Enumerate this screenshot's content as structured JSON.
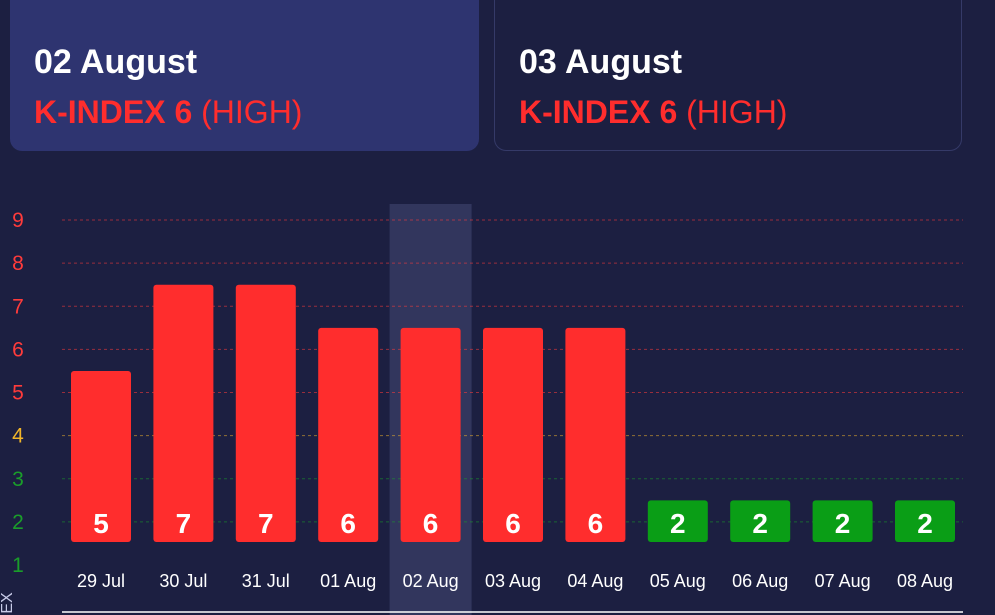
{
  "cards": [
    {
      "date": "02 August",
      "k_label": "K-INDEX 6",
      "level": "(HIGH)"
    },
    {
      "date": "03 August",
      "k_label": "K-INDEX 6",
      "level": "(HIGH)"
    }
  ],
  "colors": {
    "background": "#1c1f41",
    "card_active": "#2e3470",
    "high": "#ff2d2d",
    "moderate": "#f0b429",
    "low": "#1a9e2a",
    "highlight": "#353861"
  },
  "chart_data": {
    "type": "bar",
    "categories": [
      "29 Jul",
      "30 Jul",
      "31 Jul",
      "01 Aug",
      "02 Aug",
      "03 Aug",
      "04 Aug",
      "05 Aug",
      "06 Aug",
      "07 Aug",
      "08 Aug"
    ],
    "values": [
      5,
      7,
      7,
      6,
      6,
      6,
      6,
      2,
      2,
      2,
      2
    ],
    "bar_colors": [
      "#ff2d2d",
      "#ff2d2d",
      "#ff2d2d",
      "#ff2d2d",
      "#ff2d2d",
      "#ff2d2d",
      "#ff2d2d",
      "#0a9e16",
      "#0a9e16",
      "#0a9e16",
      "#0a9e16"
    ],
    "highlighted_category": "02 Aug",
    "yticks": [
      1,
      2,
      3,
      4,
      5,
      6,
      7,
      8,
      9
    ],
    "ytick_colors": [
      "#1a9e2a",
      "#1a9e2a",
      "#1a9e2a",
      "#f0b429",
      "#ff3b3b",
      "#ff3b3b",
      "#ff3b3b",
      "#ff3b3b",
      "#ff3b3b"
    ],
    "ylim": [
      1,
      9
    ],
    "ylabel": "EX",
    "grid": true
  }
}
